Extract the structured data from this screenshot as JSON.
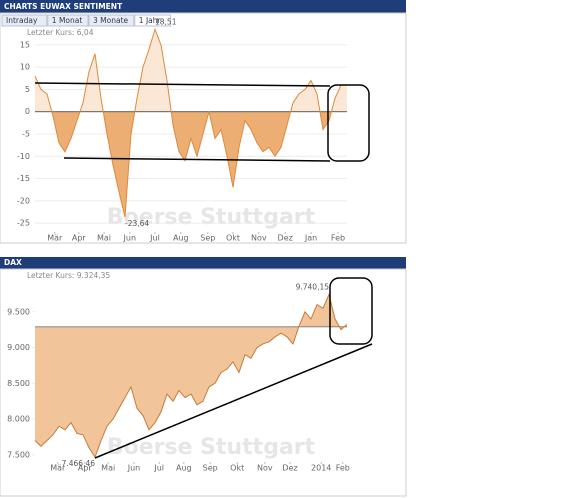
{
  "chart_data": [
    {
      "type": "area",
      "title": "CHARTS EUWAX SENTIMENT",
      "tabs": [
        "Intraday",
        "1 Monat",
        "3 Monate",
        "1 Jahr"
      ],
      "active_tab": 3,
      "subtitle": "Letzter Kurs: 6,04",
      "watermark": "Boerse Stuttgart",
      "values": [
        8,
        5,
        4,
        -1,
        -7,
        -9,
        -6,
        -2,
        2,
        9,
        13,
        3,
        -5,
        -12,
        -18,
        -23.64,
        -5,
        3,
        10,
        14,
        18.51,
        15,
        7,
        -3,
        -9,
        -11,
        -6,
        -10,
        -5,
        0,
        -6,
        -4,
        -10,
        -17,
        -8,
        -2,
        -4,
        -7,
        -9,
        -8,
        -10,
        -8,
        -3,
        2,
        4,
        5,
        7,
        4,
        -4,
        -2,
        3,
        6,
        6.04
      ],
      "annotations": [
        {
          "value": 18.51,
          "label": "18,51"
        },
        {
          "value": -23.64,
          "label": "-23,64"
        }
      ],
      "baseline": 0,
      "color": "#e0893a",
      "fill_above": "#fbe4d0",
      "fill_below": "#eaa563",
      "xlim": [
        0,
        52
      ],
      "xticks": [
        {
          "value": 3.3,
          "label": "Mär"
        },
        {
          "value": 7.3,
          "label": "Apr"
        },
        {
          "value": 11.5,
          "label": "Mai"
        },
        {
          "value": 15.8,
          "label": "Jun"
        },
        {
          "value": 20,
          "label": "Jul"
        },
        {
          "value": 24.3,
          "label": "Aug"
        },
        {
          "value": 28.8,
          "label": "Sep"
        },
        {
          "value": 33,
          "label": "Okt"
        },
        {
          "value": 37.3,
          "label": "Nov"
        },
        {
          "value": 41.7,
          "label": "Dez"
        },
        {
          "value": 46,
          "label": "Jan"
        },
        {
          "value": 50.5,
          "label": "Feb"
        }
      ],
      "ylim": [
        -27,
        17
      ],
      "yticks": [
        15,
        10,
        5,
        0,
        -5,
        -10,
        -15,
        -20,
        -25
      ],
      "grid": true
    },
    {
      "type": "area",
      "title": "DAX",
      "subtitle": "Letzter Kurs: 9.324,35",
      "watermark": "Boerse Stuttgart",
      "values": [
        7700,
        7620,
        7700,
        7780,
        7900,
        7850,
        7950,
        7800,
        7780,
        7600,
        7466.46,
        7700,
        7900,
        8000,
        8150,
        8300,
        8450,
        8150,
        8050,
        7850,
        7950,
        8100,
        8350,
        8250,
        8400,
        8300,
        8350,
        8200,
        8250,
        8450,
        8500,
        8650,
        8700,
        8800,
        8650,
        8900,
        8850,
        9000,
        9050,
        9080,
        9150,
        9200,
        9150,
        9050,
        9300,
        9500,
        9400,
        9600,
        9550,
        9740.15,
        9400,
        9250,
        9324.35
      ],
      "annotations": [
        {
          "value": 9740.15,
          "label": "9.740,15"
        },
        {
          "value": 7466.46,
          "label": "7.466,46"
        }
      ],
      "baseline": 9290,
      "color": "#c87a3a",
      "fill_above": "#f0be8e",
      "fill_below": "#f0be8e",
      "xlim": [
        0,
        52
      ],
      "xticks": [
        {
          "value": 3.8,
          "label": "Mär"
        },
        {
          "value": 8.3,
          "label": "Apr"
        },
        {
          "value": 12.2,
          "label": "Mai"
        },
        {
          "value": 16.5,
          "label": "Jun"
        },
        {
          "value": 20.7,
          "label": "Jul"
        },
        {
          "value": 24.8,
          "label": "Aug"
        },
        {
          "value": 29.2,
          "label": "Sep"
        },
        {
          "value": 33.7,
          "label": "Okt"
        },
        {
          "value": 38.3,
          "label": "Nov"
        },
        {
          "value": 42.5,
          "label": "Dez"
        },
        {
          "value": 47.7,
          "label": "2014"
        },
        {
          "value": 51.3,
          "label": "Feb"
        }
      ],
      "ylim": [
        7400,
        10000
      ],
      "yticks": [
        {
          "value": 7500,
          "label": "7.500"
        },
        {
          "value": 8000,
          "label": "8.000"
        },
        {
          "value": 8500,
          "label": "8.500"
        },
        {
          "value": 9000,
          "label": "9.000"
        },
        {
          "value": 9500,
          "label": "9.500"
        }
      ],
      "grid": false
    }
  ]
}
